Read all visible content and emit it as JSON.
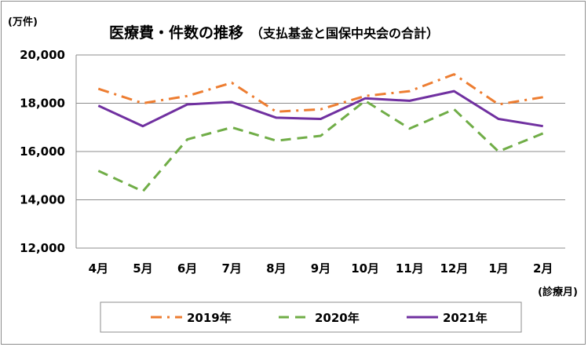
{
  "chart_data": {
    "type": "line",
    "title": "医療費・件数の推移",
    "subtitle": "（支払基金と国保中央会の合計）",
    "y_unit_label": "(万件)",
    "x_unit_label": "(診療月)",
    "categories": [
      "4月",
      "5月",
      "6月",
      "7月",
      "8月",
      "9月",
      "10月",
      "11月",
      "12月",
      "1月",
      "2月"
    ],
    "ylim": [
      12000,
      20000
    ],
    "yticks": [
      12000,
      14000,
      16000,
      18000,
      20000
    ],
    "ytick_labels": [
      "12,000",
      "14,000",
      "16,000",
      "18,000",
      "20,000"
    ],
    "grid": true,
    "legend_position": "bottom",
    "series": [
      {
        "name": "2019年",
        "color": "#ED7D31",
        "dash": "dash-dot",
        "values": [
          18600,
          18000,
          18300,
          18850,
          17650,
          17750,
          18300,
          18500,
          19200,
          17950,
          18250
        ]
      },
      {
        "name": "2020年",
        "color": "#70AD47",
        "dash": "dash",
        "values": [
          15200,
          14350,
          16500,
          17000,
          16450,
          16650,
          18100,
          16950,
          17750,
          16000,
          16750
        ]
      },
      {
        "name": "2021年",
        "color": "#7030A0",
        "dash": "solid",
        "values": [
          17900,
          17050,
          17950,
          18050,
          17400,
          17350,
          18200,
          18100,
          18500,
          17350,
          17050
        ]
      }
    ]
  }
}
